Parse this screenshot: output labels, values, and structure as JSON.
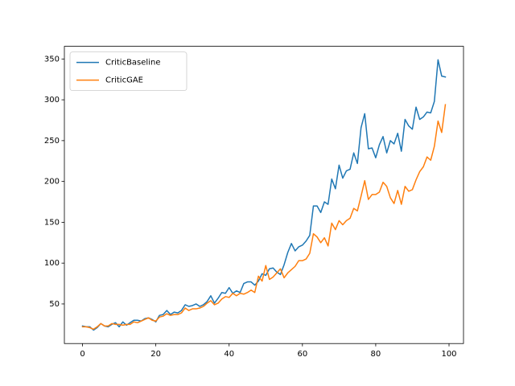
{
  "chart_data": {
    "type": "line",
    "x": [
      0,
      1,
      2,
      3,
      4,
      5,
      6,
      7,
      8,
      9,
      10,
      11,
      12,
      13,
      14,
      15,
      16,
      17,
      18,
      19,
      20,
      21,
      22,
      23,
      24,
      25,
      26,
      27,
      28,
      29,
      30,
      31,
      32,
      33,
      34,
      35,
      36,
      37,
      38,
      39,
      40,
      41,
      42,
      43,
      44,
      45,
      46,
      47,
      48,
      49,
      50,
      51,
      52,
      53,
      54,
      55,
      56,
      57,
      58,
      59,
      60,
      61,
      62,
      63,
      64,
      65,
      66,
      67,
      68,
      69,
      70,
      71,
      72,
      73,
      74,
      75,
      76,
      77,
      78,
      79,
      80,
      81,
      82,
      83,
      84,
      85,
      86,
      87,
      88,
      89,
      90,
      91,
      92,
      93,
      94,
      95,
      96,
      97,
      98,
      99
    ],
    "series": [
      {
        "name": "CriticBaseline",
        "color": "#1f77b4",
        "values": [
          23,
          22,
          22,
          18,
          21,
          26,
          23,
          22,
          25,
          27,
          22,
          28,
          24,
          27,
          30,
          30,
          29,
          32,
          33,
          31,
          28,
          36,
          37,
          42,
          37,
          40,
          39,
          42,
          49,
          47,
          48,
          50,
          47,
          49,
          53,
          60,
          51,
          57,
          64,
          63,
          70,
          63,
          66,
          64,
          75,
          77,
          77,
          73,
          78,
          87,
          85,
          93,
          94,
          89,
          86,
          98,
          113,
          124,
          115,
          120,
          122,
          127,
          134,
          170,
          170,
          162,
          175,
          172,
          203,
          191,
          220,
          204,
          213,
          215,
          235,
          222,
          266,
          283,
          240,
          241,
          229,
          245,
          255,
          235,
          250,
          246,
          259,
          237,
          276,
          268,
          264,
          291,
          276,
          279,
          285,
          284,
          298,
          349,
          329,
          328
        ]
      },
      {
        "name": "CriticGAE",
        "color": "#ff7f0e",
        "values": [
          22,
          22,
          21,
          19,
          22,
          26,
          23,
          23,
          26,
          25,
          25,
          24,
          25,
          25,
          28,
          27,
          29,
          31,
          33,
          30,
          29,
          34,
          35,
          38,
          36,
          37,
          37,
          39,
          45,
          42,
          44,
          44,
          45,
          47,
          51,
          54,
          49,
          51,
          56,
          59,
          58,
          63,
          60,
          63,
          62,
          64,
          67,
          64,
          84,
          78,
          97,
          80,
          83,
          88,
          93,
          82,
          88,
          92,
          96,
          103,
          103,
          105,
          112,
          136,
          132,
          125,
          131,
          121,
          149,
          141,
          152,
          147,
          152,
          155,
          167,
          164,
          182,
          201,
          178,
          184,
          184,
          187,
          199,
          194,
          180,
          173,
          189,
          172,
          194,
          188,
          190,
          202,
          212,
          218,
          230,
          226,
          243,
          274,
          260,
          294
        ]
      }
    ],
    "xlim": [
      -4.95,
      103.95
    ],
    "xticks": [
      0,
      20,
      40,
      60,
      80,
      100
    ],
    "ylim": [
      1.5,
      365.5
    ],
    "yticks": [
      50,
      100,
      150,
      200,
      250,
      300,
      350
    ],
    "legend": "upper left"
  }
}
